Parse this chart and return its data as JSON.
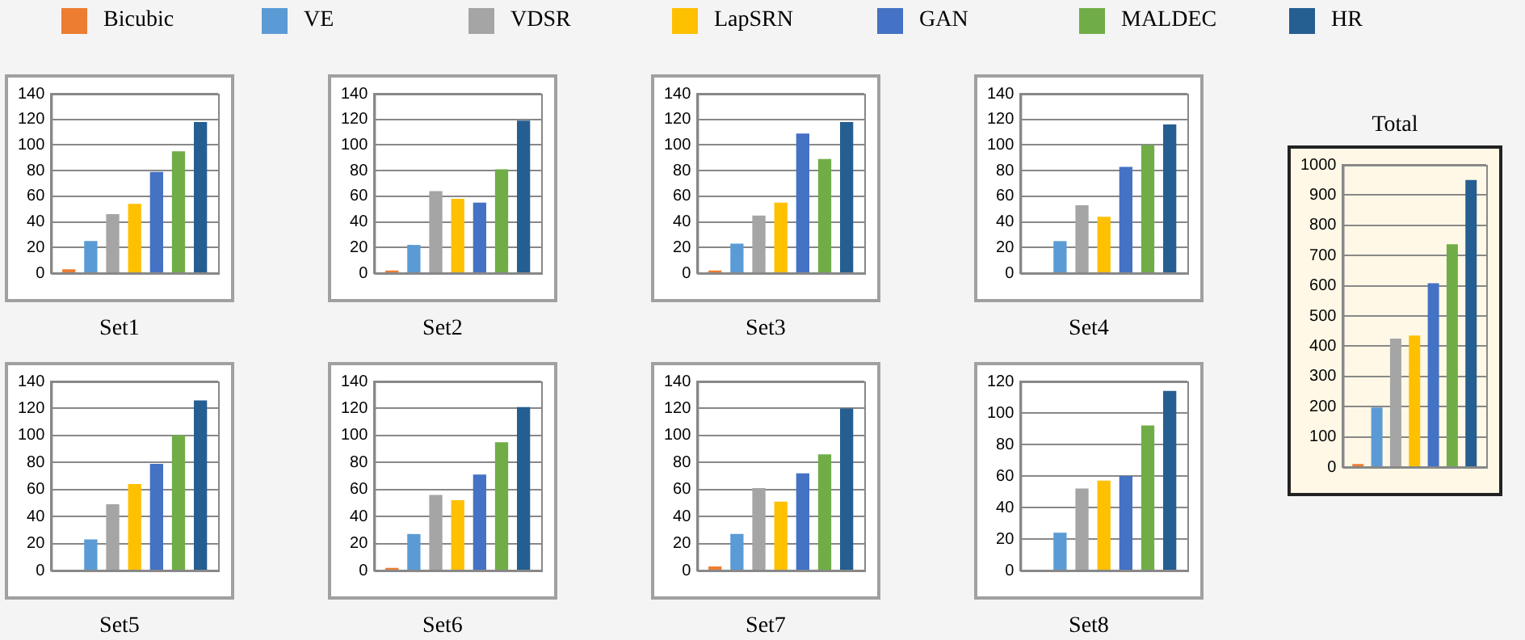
{
  "chart_data": [
    {
      "type": "bar",
      "xlabel": "Set1",
      "legend": "top",
      "grid": "y",
      "categories": [
        null
      ],
      "ylim": [
        0,
        140
      ],
      "yticks": [
        0,
        20,
        40,
        60,
        80,
        100,
        120,
        140
      ],
      "series": [
        {
          "name": "Bicubic",
          "color": "#ed7d31",
          "values": [
            3
          ]
        },
        {
          "name": "VE",
          "color": "#5b9bd5",
          "values": [
            25
          ]
        },
        {
          "name": "VDSR",
          "color": "#a5a5a5",
          "values": [
            46
          ]
        },
        {
          "name": "LapSRN",
          "color": "#ffc000",
          "values": [
            54
          ]
        },
        {
          "name": "GAN",
          "color": "#4472c4",
          "values": [
            79
          ]
        },
        {
          "name": "MALDEC",
          "color": "#70ad47",
          "values": [
            95
          ]
        },
        {
          "name": "HR",
          "color": "#255e91",
          "values": [
            118
          ]
        }
      ]
    },
    {
      "type": "bar",
      "xlabel": "Set2",
      "grid": "y",
      "categories": [
        null
      ],
      "ylim": [
        0,
        140
      ],
      "yticks": [
        0,
        20,
        40,
        60,
        80,
        100,
        120,
        140
      ],
      "series": [
        {
          "color": "#ed7d31",
          "values": [
            2
          ]
        },
        {
          "color": "#5b9bd5",
          "values": [
            22
          ]
        },
        {
          "color": "#a5a5a5",
          "values": [
            64
          ]
        },
        {
          "color": "#ffc000",
          "values": [
            58
          ]
        },
        {
          "color": "#4472c4",
          "values": [
            55
          ]
        },
        {
          "color": "#70ad47",
          "values": [
            81
          ]
        },
        {
          "color": "#255e91",
          "values": [
            119
          ]
        }
      ]
    },
    {
      "type": "bar",
      "xlabel": "Set3",
      "grid": "y",
      "categories": [
        null
      ],
      "ylim": [
        0,
        140
      ],
      "yticks": [
        0,
        20,
        40,
        60,
        80,
        100,
        120,
        140
      ],
      "series": [
        {
          "color": "#ed7d31",
          "values": [
            2
          ]
        },
        {
          "color": "#5b9bd5",
          "values": [
            23
          ]
        },
        {
          "color": "#a5a5a5",
          "values": [
            45
          ]
        },
        {
          "color": "#ffc000",
          "values": [
            55
          ]
        },
        {
          "color": "#4472c4",
          "values": [
            109
          ]
        },
        {
          "color": "#70ad47",
          "values": [
            89
          ]
        },
        {
          "color": "#255e91",
          "values": [
            118
          ]
        }
      ]
    },
    {
      "type": "bar",
      "xlabel": "Set4",
      "grid": "y",
      "categories": [
        null
      ],
      "ylim": [
        0,
        140
      ],
      "yticks": [
        0,
        20,
        40,
        60,
        80,
        100,
        120,
        140
      ],
      "series": [
        {
          "color": "#ed7d31",
          "values": [
            0
          ]
        },
        {
          "color": "#5b9bd5",
          "values": [
            25
          ]
        },
        {
          "color": "#a5a5a5",
          "values": [
            53
          ]
        },
        {
          "color": "#ffc000",
          "values": [
            44
          ]
        },
        {
          "color": "#4472c4",
          "values": [
            83
          ]
        },
        {
          "color": "#70ad47",
          "values": [
            100
          ]
        },
        {
          "color": "#255e91",
          "values": [
            116
          ]
        }
      ]
    },
    {
      "type": "bar",
      "xlabel": "Set5",
      "grid": "y",
      "categories": [
        null
      ],
      "ylim": [
        0,
        140
      ],
      "yticks": [
        0,
        20,
        40,
        60,
        80,
        100,
        120,
        140
      ],
      "series": [
        {
          "color": "#ed7d31",
          "values": [
            0
          ]
        },
        {
          "color": "#5b9bd5",
          "values": [
            23
          ]
        },
        {
          "color": "#a5a5a5",
          "values": [
            49
          ]
        },
        {
          "color": "#ffc000",
          "values": [
            64
          ]
        },
        {
          "color": "#4472c4",
          "values": [
            79
          ]
        },
        {
          "color": "#70ad47",
          "values": [
            100
          ]
        },
        {
          "color": "#255e91",
          "values": [
            126
          ]
        }
      ]
    },
    {
      "type": "bar",
      "xlabel": "Set6",
      "grid": "y",
      "categories": [
        null
      ],
      "ylim": [
        0,
        140
      ],
      "yticks": [
        0,
        20,
        40,
        60,
        80,
        100,
        120,
        140
      ],
      "series": [
        {
          "color": "#ed7d31",
          "values": [
            2
          ]
        },
        {
          "color": "#5b9bd5",
          "values": [
            27
          ]
        },
        {
          "color": "#a5a5a5",
          "values": [
            56
          ]
        },
        {
          "color": "#ffc000",
          "values": [
            52
          ]
        },
        {
          "color": "#4472c4",
          "values": [
            71
          ]
        },
        {
          "color": "#70ad47",
          "values": [
            95
          ]
        },
        {
          "color": "#255e91",
          "values": [
            121
          ]
        }
      ]
    },
    {
      "type": "bar",
      "xlabel": "Set7",
      "grid": "y",
      "categories": [
        null
      ],
      "ylim": [
        0,
        140
      ],
      "yticks": [
        0,
        20,
        40,
        60,
        80,
        100,
        120,
        140
      ],
      "series": [
        {
          "color": "#ed7d31",
          "values": [
            3
          ]
        },
        {
          "color": "#5b9bd5",
          "values": [
            27
          ]
        },
        {
          "color": "#a5a5a5",
          "values": [
            61
          ]
        },
        {
          "color": "#ffc000",
          "values": [
            51
          ]
        },
        {
          "color": "#4472c4",
          "values": [
            72
          ]
        },
        {
          "color": "#70ad47",
          "values": [
            86
          ]
        },
        {
          "color": "#255e91",
          "values": [
            120
          ]
        }
      ]
    },
    {
      "type": "bar",
      "xlabel": "Set8",
      "grid": "y",
      "categories": [
        null
      ],
      "ylim": [
        0,
        120
      ],
      "yticks": [
        0,
        20,
        40,
        60,
        80,
        100,
        120
      ],
      "series": [
        {
          "color": "#ed7d31",
          "values": [
            0
          ]
        },
        {
          "color": "#5b9bd5",
          "values": [
            24
          ]
        },
        {
          "color": "#a5a5a5",
          "values": [
            52
          ]
        },
        {
          "color": "#ffc000",
          "values": [
            57
          ]
        },
        {
          "color": "#4472c4",
          "values": [
            60
          ]
        },
        {
          "color": "#70ad47",
          "values": [
            92
          ]
        },
        {
          "color": "#255e91",
          "values": [
            114
          ]
        }
      ]
    },
    {
      "type": "bar",
      "title": "Total",
      "grid": "y",
      "categories": [
        null
      ],
      "ylim": [
        0,
        1000
      ],
      "yticks": [
        0,
        100,
        200,
        300,
        400,
        500,
        600,
        700,
        800,
        900,
        1000
      ],
      "series": [
        {
          "color": "#ed7d31",
          "values": [
            10
          ]
        },
        {
          "color": "#5b9bd5",
          "values": [
            197
          ]
        },
        {
          "color": "#a5a5a5",
          "values": [
            425
          ]
        },
        {
          "color": "#ffc000",
          "values": [
            435
          ]
        },
        {
          "color": "#4472c4",
          "values": [
            608
          ]
        },
        {
          "color": "#70ad47",
          "values": [
            737
          ]
        },
        {
          "color": "#255e91",
          "values": [
            950
          ]
        }
      ]
    }
  ]
}
